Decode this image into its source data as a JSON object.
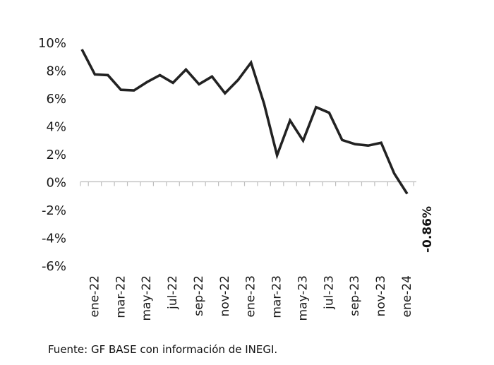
{
  "chart_data": {
    "type": "line",
    "title": "",
    "xlabel": "",
    "ylabel": "",
    "x": [
      "dic-21",
      "ene-22",
      "feb-22",
      "mar-22",
      "abr-22",
      "may-22",
      "jun-22",
      "jul-22",
      "ago-22",
      "sep-22",
      "oct-22",
      "nov-22",
      "dic-22",
      "ene-23",
      "feb-23",
      "mar-23",
      "abr-23",
      "may-23",
      "jun-23",
      "jul-23",
      "ago-23",
      "sep-23",
      "oct-23",
      "nov-23",
      "dic-23",
      "ene-24"
    ],
    "x_tick_labels": [
      "ene-22",
      "mar-22",
      "may-22",
      "jul-22",
      "sep-22",
      "nov-22",
      "ene-23",
      "mar-23",
      "may-23",
      "jul-23",
      "sep-23",
      "nov-23",
      "ene-24"
    ],
    "x_tick_indices": [
      1,
      3,
      5,
      7,
      9,
      11,
      13,
      15,
      17,
      19,
      21,
      23,
      25
    ],
    "series": [
      {
        "values": [
          9.5,
          7.7,
          7.65,
          6.6,
          6.55,
          7.15,
          7.65,
          7.1,
          8.05,
          7.0,
          7.55,
          6.35,
          7.3,
          8.55,
          5.6,
          1.9,
          4.4,
          2.95,
          5.35,
          4.95,
          3.0,
          2.7,
          2.6,
          2.8,
          0.6,
          -0.86
        ],
        "color": "#222222"
      }
    ],
    "ylim": [
      -6,
      10
    ],
    "y_ticks": [
      10,
      8,
      6,
      4,
      2,
      0,
      -2,
      -4,
      -6
    ],
    "y_tick_labels": [
      "10%",
      "8%",
      "6%",
      "4%",
      "2%",
      "0%",
      "-2%",
      "-4%",
      "-6%"
    ],
    "grid": false,
    "annotations": [
      {
        "text": "-0.86%",
        "x": "ene-24",
        "y": -0.86
      }
    ]
  },
  "source": "Fuente: GF BASE con información de INEGI."
}
